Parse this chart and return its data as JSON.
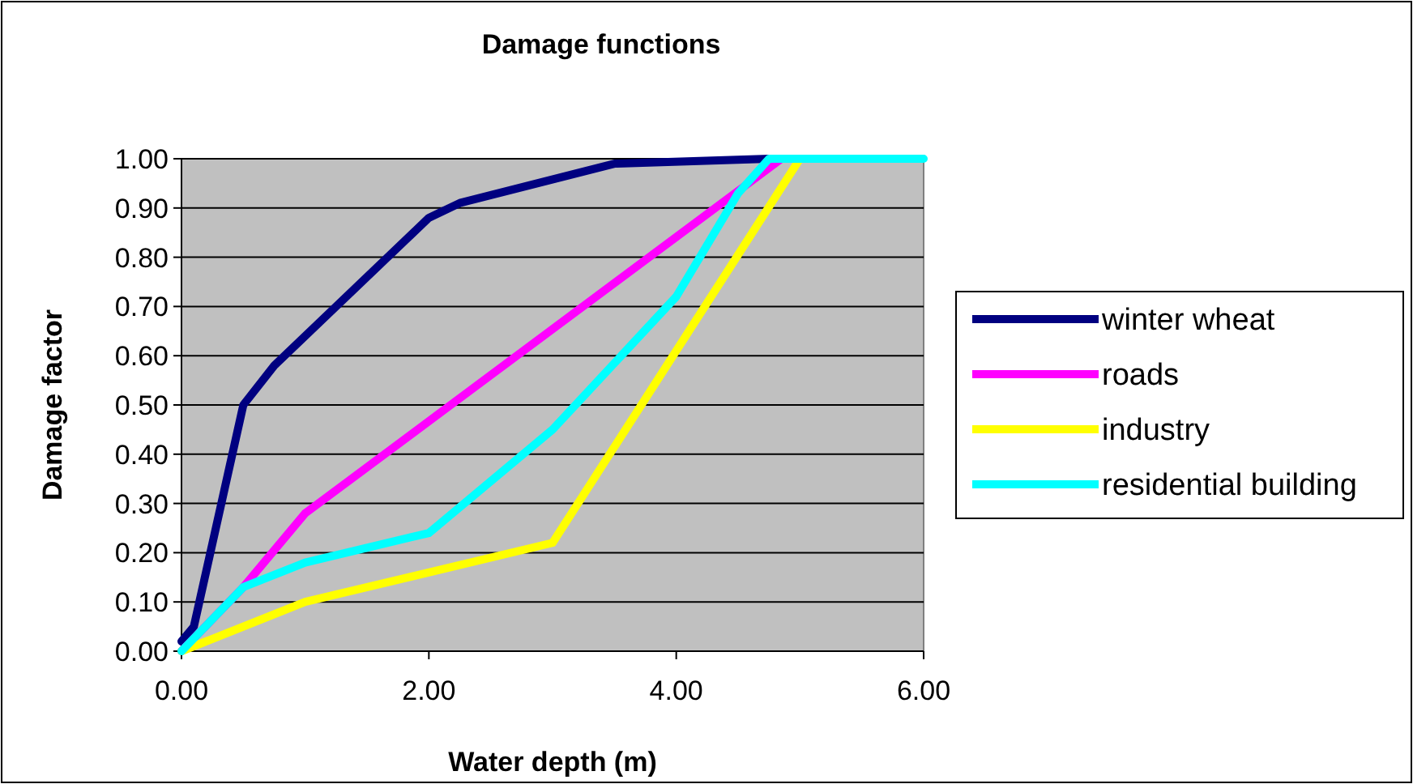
{
  "chart_data": {
    "type": "line",
    "title": "Damage functions",
    "xlabel": "Water depth (m)",
    "ylabel": "Damage factor",
    "xlim": [
      0,
      6
    ],
    "xticks": [
      {
        "value": 0,
        "label": "0.00"
      },
      {
        "value": 2,
        "label": "2.00"
      },
      {
        "value": 4,
        "label": "4.00"
      },
      {
        "value": 6,
        "label": "6.00"
      }
    ],
    "ylim": [
      0,
      1
    ],
    "yticks": [
      {
        "value": 0,
        "label": "0.00"
      },
      {
        "value": 0.1,
        "label": "0.10"
      },
      {
        "value": 0.2,
        "label": "0.20"
      },
      {
        "value": 0.3,
        "label": "0.30"
      },
      {
        "value": 0.4,
        "label": "0.40"
      },
      {
        "value": 0.5,
        "label": "0.50"
      },
      {
        "value": 0.6,
        "label": "0.60"
      },
      {
        "value": 0.7,
        "label": "0.70"
      },
      {
        "value": 0.8,
        "label": "0.80"
      },
      {
        "value": 0.9,
        "label": "0.90"
      },
      {
        "value": 1,
        "label": "1.00"
      }
    ],
    "grid": "y",
    "legend": "right",
    "series": [
      {
        "name": "winter wheat",
        "color": "#000080",
        "x": [
          0,
          0.1,
          0.5,
          0.75,
          2,
          2.25,
          3.5,
          4.75
        ],
        "values": [
          0.02,
          0.05,
          0.5,
          0.58,
          0.88,
          0.91,
          0.99,
          1
        ]
      },
      {
        "name": "roads",
        "color": "#ff00ff",
        "x": [
          0,
          0.5,
          1,
          4.85
        ],
        "values": [
          0,
          0.13,
          0.28,
          1
        ]
      },
      {
        "name": "industry",
        "color": "#ffff00",
        "x": [
          0,
          1,
          3,
          5
        ],
        "values": [
          0,
          0.1,
          0.22,
          1
        ]
      },
      {
        "name": "residential building",
        "color": "#00ffff",
        "x": [
          0,
          0.5,
          1,
          2,
          3,
          4,
          4.5,
          4.75,
          6
        ],
        "values": [
          0,
          0.13,
          0.18,
          0.24,
          0.45,
          0.72,
          0.93,
          1,
          1
        ]
      }
    ]
  }
}
